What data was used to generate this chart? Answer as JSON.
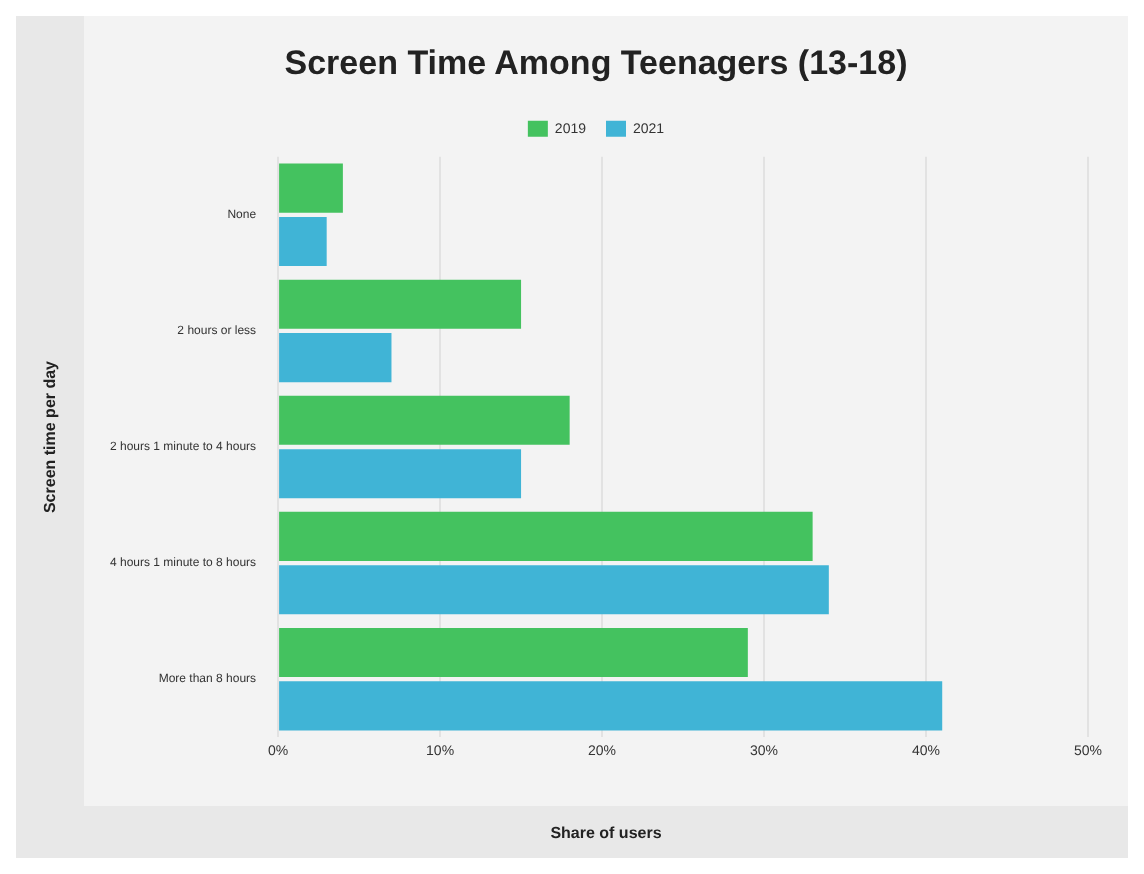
{
  "chart_data": {
    "type": "bar",
    "orientation": "horizontal",
    "title": "Screen Time Among Teenagers (13-18)",
    "xlabel": "Share of users",
    "ylabel": "Screen time per day",
    "categories": [
      "None",
      "2 hours or less",
      "2 hours 1 minute to 4 hours",
      "4 hours 1 minute to 8 hours",
      "More than 8 hours"
    ],
    "series": [
      {
        "name": "2019",
        "color": "#44c25f",
        "values": [
          4,
          15,
          18,
          33,
          29
        ]
      },
      {
        "name": "2021",
        "color": "#40b4d6",
        "values": [
          3,
          7,
          15,
          34,
          41
        ]
      }
    ],
    "xlim": [
      0,
      50
    ],
    "xticks": [
      {
        "value": 0,
        "label": "0%"
      },
      {
        "value": 10,
        "label": "10%"
      },
      {
        "value": 20,
        "label": "20%"
      },
      {
        "value": 30,
        "label": "30%"
      },
      {
        "value": 40,
        "label": "40%"
      },
      {
        "value": 50,
        "label": "50%"
      }
    ],
    "grid": "x",
    "legend": "top"
  }
}
